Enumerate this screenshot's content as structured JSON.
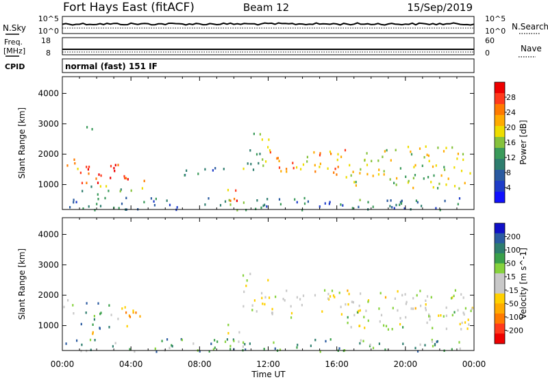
{
  "header": {
    "title": "Fort Hays East (fitACF)",
    "beam": "Beam 12",
    "date": "15/Sep/2019"
  },
  "top_panel": {
    "left_label": "N.Sky",
    "right_label": "N.Search",
    "left_ticks": [
      "10^5",
      "10^0"
    ],
    "right_ticks": [
      "10^5",
      "10^0"
    ]
  },
  "freq_panel": {
    "left_label_1": "Freq.",
    "left_label_2": "[MHz]",
    "right_label": "Nave",
    "left_ticks": [
      "18",
      "8"
    ],
    "right_ticks": [
      "60",
      "0"
    ],
    "cpid_label": "CPID",
    "cpid_text": "normal (fast) 151 IF"
  },
  "chart_data": [
    {
      "type": "heatmap",
      "name": "power",
      "ylabel": "Slant Range [km]",
      "xlabel": "",
      "x_ticks": [
        "00:00",
        "04:00",
        "08:00",
        "12:00",
        "16:00",
        "20:00",
        "00:00"
      ],
      "x_range_hours": [
        0,
        24
      ],
      "y_ticks": [
        1000,
        2000,
        3000,
        4000
      ],
      "y_range_km": [
        180,
        4550
      ],
      "colorbar": {
        "label": "Power [dB]",
        "ticks": [
          "28",
          "24",
          "20",
          "16",
          "12",
          "8",
          "4"
        ],
        "colors": [
          "#ee0000",
          "#ff3a1c",
          "#ff7a00",
          "#ffab00",
          "#eedd00",
          "#86c23c",
          "#3a9a5a",
          "#2e7d6e",
          "#2a5aa0",
          "#1e3cc8",
          "#1010ff"
        ]
      },
      "regions": [
        {
          "t0": 0.0,
          "t1": 1.0,
          "r0": 1400,
          "r1": 1900,
          "level": 0.75
        },
        {
          "t0": 1.0,
          "t1": 4.8,
          "r0": 1000,
          "r1": 1700,
          "level": 0.9
        },
        {
          "t0": 1.0,
          "t1": 4.8,
          "r0": 700,
          "r1": 1000,
          "level": 0.4
        },
        {
          "t0": 0.8,
          "t1": 1.8,
          "r0": 2800,
          "r1": 3000,
          "level": 0.35
        },
        {
          "t0": 0.0,
          "t1": 24.0,
          "r0": 180,
          "r1": 600,
          "level": 0.3
        },
        {
          "t0": 9.6,
          "t1": 10.6,
          "r0": 500,
          "r1": 1100,
          "level": 0.8
        },
        {
          "t0": 12.0,
          "t1": 16.5,
          "r0": 1300,
          "r1": 2200,
          "level": 0.7
        },
        {
          "t0": 16.5,
          "t1": 24.0,
          "r0": 900,
          "r1": 1700,
          "level": 0.55
        },
        {
          "t0": 17.5,
          "t1": 24.0,
          "r0": 1800,
          "r1": 2300,
          "level": 0.6
        },
        {
          "t0": 6.5,
          "t1": 9.5,
          "r0": 1300,
          "r1": 1600,
          "level": 0.3
        },
        {
          "t0": 10.5,
          "t1": 12.0,
          "r0": 1500,
          "r1": 2800,
          "level": 0.45
        }
      ]
    },
    {
      "type": "heatmap",
      "name": "velocity",
      "ylabel": "Slant Range [km]",
      "xlabel": "Time UT",
      "x_ticks": [
        "00:00",
        "04:00",
        "08:00",
        "12:00",
        "16:00",
        "20:00",
        "00:00"
      ],
      "x_range_hours": [
        0,
        24
      ],
      "y_ticks": [
        1000,
        2000,
        3000,
        4000
      ],
      "y_range_km": [
        180,
        4550
      ],
      "colorbar": {
        "label": "Velocity [m s^-1]",
        "ticks": [
          "200",
          "100",
          "50",
          "15",
          "-15",
          "-50",
          "-100",
          "-200"
        ],
        "colors": [
          "#1010c8",
          "#2a5aa0",
          "#2e7d6e",
          "#3aa04a",
          "#86d23c",
          "#c8c8c8",
          "#c8c8c8",
          "#ffd000",
          "#ffab00",
          "#ff7a00",
          "#ff3a1c",
          "#ee0000"
        ]
      },
      "regions": [
        {
          "t0": 0.0,
          "t1": 1.0,
          "r0": 1400,
          "r1": 1900,
          "level": 0.55
        },
        {
          "t0": 1.0,
          "t1": 2.8,
          "r0": 900,
          "r1": 1800,
          "level": 0.75
        },
        {
          "t0": 2.8,
          "t1": 4.8,
          "r0": 1000,
          "r1": 1700,
          "level": 0.35
        },
        {
          "t0": 0.8,
          "t1": 1.8,
          "r0": 700,
          "r1": 900,
          "level": 0.4
        },
        {
          "t0": 0.0,
          "t1": 24.0,
          "r0": 180,
          "r1": 600,
          "level": 0.72
        },
        {
          "t0": 9.6,
          "t1": 10.6,
          "r0": 500,
          "r1": 1100,
          "level": 0.5
        },
        {
          "t0": 12.0,
          "t1": 24.0,
          "r0": 1300,
          "r1": 2200,
          "level": 0.5
        },
        {
          "t0": 16.5,
          "t1": 24.0,
          "r0": 900,
          "r1": 1400,
          "level": 0.5
        },
        {
          "t0": 10.5,
          "t1": 12.0,
          "r0": 1500,
          "r1": 2800,
          "level": 0.5
        }
      ]
    }
  ]
}
